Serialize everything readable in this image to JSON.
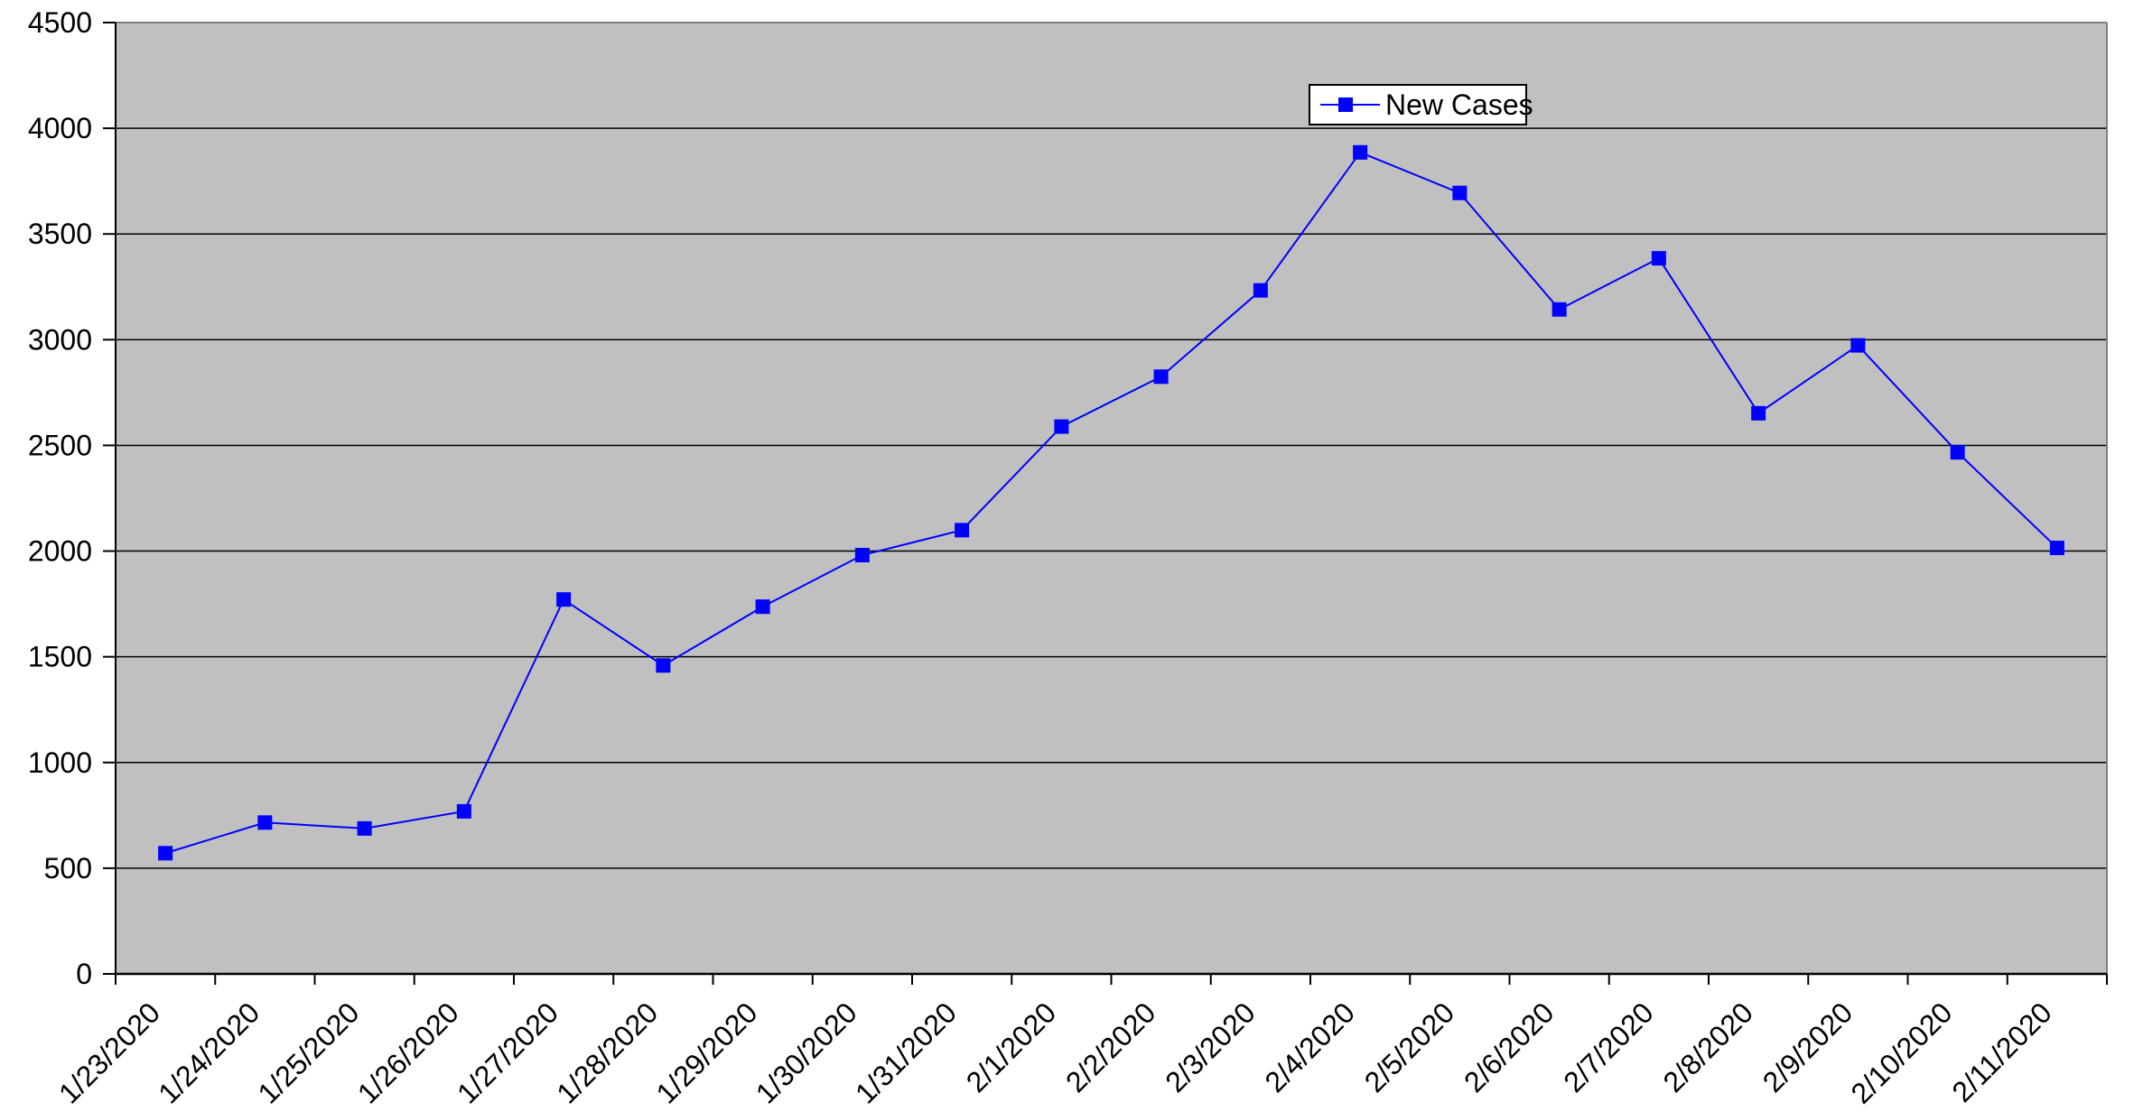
{
  "chart_data": {
    "type": "line",
    "title": "",
    "legend_label": "New Cases",
    "categories": [
      "1/23/2020",
      "1/24/2020",
      "1/25/2020",
      "1/26/2020",
      "1/27/2020",
      "1/28/2020",
      "1/29/2020",
      "1/30/2020",
      "1/31/2020",
      "2/1/2020",
      "2/2/2020",
      "2/3/2020",
      "2/4/2020",
      "2/5/2020",
      "2/6/2020",
      "2/7/2020",
      "2/8/2020",
      "2/9/2020",
      "2/10/2020",
      "2/11/2020"
    ],
    "values": [
      571,
      716,
      688,
      769,
      1771,
      1459,
      1737,
      1981,
      2099,
      2589,
      2825,
      3233,
      3886,
      3694,
      3143,
      3385,
      2652,
      2973,
      2467,
      2015
    ],
    "ylim": [
      0,
      4500
    ],
    "ytick_step": 500,
    "ytick_labels": [
      "0",
      "500",
      "1000",
      "1500",
      "2000",
      "2500",
      "3000",
      "3500",
      "4000",
      "4500"
    ],
    "grid": "horizontal",
    "legend_position": "top-center",
    "marker": "square",
    "colors": {
      "series": "#0000ff",
      "plot_background": "#c0c0c0",
      "grid_line": "#000000",
      "frame_line": "#808080",
      "axis_line": "#000000",
      "axis_text": "#000000",
      "legend_background": "#ffffff",
      "legend_border": "#000000"
    }
  }
}
